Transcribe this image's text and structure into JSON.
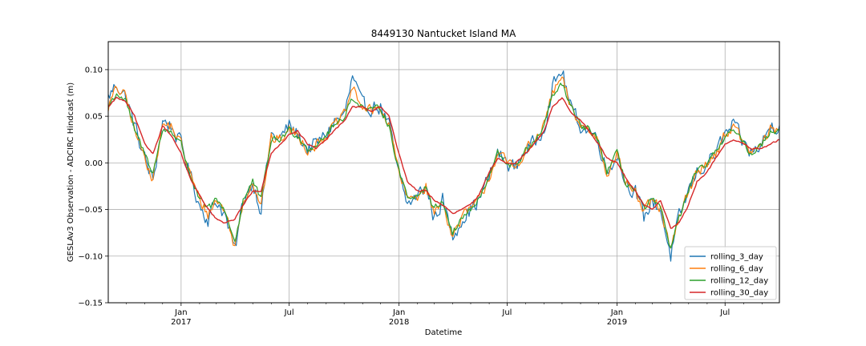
{
  "chart_data": {
    "type": "line",
    "title": "8449130 Nantucket Island MA",
    "xlabel": "Datetime",
    "ylabel": "GESLAv3 Observation - ADCIRC Hindcast (m)",
    "xlim": [
      "2016-09-01",
      "2019-09-30"
    ],
    "ylim": [
      -0.15,
      0.13
    ],
    "grid": true,
    "legend_position": "lower right",
    "y_ticks": [
      {
        "value": -0.15,
        "label": "−0.15"
      },
      {
        "value": -0.1,
        "label": "−0.10"
      },
      {
        "value": -0.05,
        "label": "−0.05"
      },
      {
        "value": 0.0,
        "label": "0.00"
      },
      {
        "value": 0.05,
        "label": "0.05"
      },
      {
        "value": 0.1,
        "label": "0.10"
      }
    ],
    "x_major_ticks": [
      {
        "date": "2017-01-01",
        "label": "Jan",
        "year": "2017"
      },
      {
        "date": "2017-07-01",
        "label": "Jul",
        "year": ""
      },
      {
        "date": "2018-01-01",
        "label": "Jan",
        "year": "2018"
      },
      {
        "date": "2018-07-01",
        "label": "Jul",
        "year": ""
      },
      {
        "date": "2019-01-01",
        "label": "Jan",
        "year": "2019"
      },
      {
        "date": "2019-07-01",
        "label": "Jul",
        "year": ""
      }
    ],
    "x_minor_ticks": [
      "2016-10-01",
      "2016-11-01",
      "2016-12-01",
      "2017-02-01",
      "2017-03-01",
      "2017-04-01",
      "2017-05-01",
      "2017-06-01",
      "2017-08-01",
      "2017-09-01",
      "2017-10-01",
      "2017-11-01",
      "2017-12-01",
      "2018-02-01",
      "2018-03-01",
      "2018-04-01",
      "2018-05-01",
      "2018-06-01",
      "2018-08-01",
      "2018-09-01",
      "2018-10-01",
      "2018-11-01",
      "2018-12-01",
      "2019-02-01",
      "2019-03-01",
      "2019-04-01",
      "2019-05-01",
      "2019-06-01",
      "2019-08-01",
      "2019-09-01"
    ],
    "series": [
      {
        "name": "rolling_3_day",
        "color": "#1f77b4"
      },
      {
        "name": "rolling_6_day",
        "color": "#ff7f0e"
      },
      {
        "name": "rolling_12_day",
        "color": "#2ca02c"
      },
      {
        "name": "rolling_30_day",
        "color": "#d62728"
      }
    ],
    "x": [
      "2016-09-01",
      "2016-09-15",
      "2016-10-01",
      "2016-10-15",
      "2016-11-01",
      "2016-11-15",
      "2016-12-01",
      "2016-12-15",
      "2017-01-01",
      "2017-01-15",
      "2017-02-01",
      "2017-02-15",
      "2017-03-01",
      "2017-03-15",
      "2017-04-01",
      "2017-04-15",
      "2017-05-01",
      "2017-05-15",
      "2017-06-01",
      "2017-06-15",
      "2017-07-01",
      "2017-07-15",
      "2017-08-01",
      "2017-08-15",
      "2017-09-01",
      "2017-09-15",
      "2017-10-01",
      "2017-10-15",
      "2017-11-01",
      "2017-11-15",
      "2017-12-01",
      "2017-12-15",
      "2018-01-01",
      "2018-01-15",
      "2018-02-01",
      "2018-02-15",
      "2018-03-01",
      "2018-03-15",
      "2018-04-01",
      "2018-04-15",
      "2018-05-01",
      "2018-05-15",
      "2018-06-01",
      "2018-06-15",
      "2018-07-01",
      "2018-07-15",
      "2018-08-01",
      "2018-08-15",
      "2018-09-01",
      "2018-09-15",
      "2018-10-01",
      "2018-10-15",
      "2018-11-01",
      "2018-11-15",
      "2018-12-01",
      "2018-12-15",
      "2019-01-01",
      "2019-01-15",
      "2019-02-01",
      "2019-02-15",
      "2019-03-01",
      "2019-03-15",
      "2019-04-01",
      "2019-04-15",
      "2019-05-01",
      "2019-05-15",
      "2019-06-01",
      "2019-06-15",
      "2019-07-01",
      "2019-07-15",
      "2019-08-01",
      "2019-08-15",
      "2019-09-01",
      "2019-09-15",
      "2019-09-30"
    ],
    "approx_values": {
      "rolling_3_day": [
        0.07,
        0.085,
        0.07,
        0.04,
        0.005,
        -0.02,
        0.045,
        0.04,
        0.02,
        -0.01,
        -0.045,
        -0.06,
        -0.04,
        -0.055,
        -0.095,
        -0.04,
        -0.02,
        -0.05,
        0.03,
        0.025,
        0.04,
        0.03,
        0.015,
        0.02,
        0.03,
        0.045,
        0.05,
        0.09,
        0.06,
        0.06,
        0.06,
        0.04,
        -0.015,
        -0.045,
        -0.035,
        -0.025,
        -0.06,
        -0.04,
        -0.08,
        -0.06,
        -0.05,
        -0.04,
        -0.015,
        0.01,
        0.0,
        -0.005,
        0.015,
        0.02,
        0.04,
        0.08,
        0.1,
        0.06,
        0.04,
        0.035,
        0.025,
        -0.01,
        0.01,
        -0.02,
        -0.03,
        -0.06,
        -0.04,
        -0.05,
        -0.1,
        -0.06,
        -0.03,
        -0.01,
        0.0,
        0.01,
        0.03,
        0.04,
        0.02,
        0.01,
        0.02,
        0.04,
        0.04
      ],
      "rolling_6_day": [
        0.06,
        0.08,
        0.07,
        0.035,
        0.005,
        -0.015,
        0.04,
        0.04,
        0.02,
        -0.01,
        -0.04,
        -0.055,
        -0.04,
        -0.05,
        -0.09,
        -0.04,
        -0.02,
        -0.045,
        0.025,
        0.025,
        0.035,
        0.03,
        0.015,
        0.02,
        0.03,
        0.04,
        0.05,
        0.08,
        0.06,
        0.055,
        0.06,
        0.04,
        -0.01,
        -0.04,
        -0.035,
        -0.025,
        -0.055,
        -0.04,
        -0.08,
        -0.06,
        -0.05,
        -0.04,
        -0.015,
        0.01,
        0.0,
        -0.005,
        0.015,
        0.02,
        0.04,
        0.075,
        0.09,
        0.06,
        0.04,
        0.035,
        0.025,
        -0.01,
        0.01,
        -0.02,
        -0.03,
        -0.055,
        -0.04,
        -0.05,
        -0.095,
        -0.06,
        -0.03,
        -0.01,
        0.0,
        0.01,
        0.03,
        0.04,
        0.02,
        0.01,
        0.02,
        0.035,
        0.035
      ],
      "rolling_12_day": [
        0.06,
        0.075,
        0.065,
        0.035,
        0.01,
        -0.01,
        0.035,
        0.035,
        0.02,
        -0.01,
        -0.04,
        -0.05,
        -0.04,
        -0.05,
        -0.085,
        -0.04,
        -0.02,
        -0.04,
        0.025,
        0.025,
        0.035,
        0.03,
        0.015,
        0.02,
        0.03,
        0.04,
        0.05,
        0.07,
        0.06,
        0.055,
        0.06,
        0.04,
        -0.01,
        -0.035,
        -0.035,
        -0.025,
        -0.05,
        -0.04,
        -0.075,
        -0.06,
        -0.05,
        -0.04,
        -0.015,
        0.01,
        0.0,
        -0.005,
        0.015,
        0.02,
        0.04,
        0.07,
        0.085,
        0.06,
        0.04,
        0.035,
        0.025,
        -0.01,
        0.01,
        -0.02,
        -0.03,
        -0.05,
        -0.04,
        -0.05,
        -0.09,
        -0.06,
        -0.03,
        -0.01,
        0.0,
        0.01,
        0.03,
        0.035,
        0.02,
        0.01,
        0.02,
        0.035,
        0.035
      ],
      "rolling_30_day": [
        0.06,
        0.07,
        0.065,
        0.05,
        0.02,
        0.01,
        0.04,
        0.03,
        0.01,
        -0.015,
        -0.035,
        -0.05,
        -0.06,
        -0.065,
        -0.06,
        -0.045,
        -0.03,
        -0.03,
        0.01,
        0.02,
        0.03,
        0.035,
        0.02,
        0.015,
        0.025,
        0.035,
        0.045,
        0.06,
        0.06,
        0.055,
        0.06,
        0.05,
        0.01,
        -0.02,
        -0.03,
        -0.03,
        -0.04,
        -0.045,
        -0.055,
        -0.05,
        -0.045,
        -0.035,
        -0.01,
        0.005,
        0.0,
        0.0,
        0.01,
        0.02,
        0.035,
        0.06,
        0.07,
        0.055,
        0.045,
        0.035,
        0.02,
        0.005,
        0.0,
        -0.015,
        -0.03,
        -0.045,
        -0.05,
        -0.04,
        -0.07,
        -0.065,
        -0.045,
        -0.02,
        -0.01,
        0.005,
        0.02,
        0.025,
        0.02,
        0.015,
        0.015,
        0.02,
        0.025
      ]
    }
  }
}
